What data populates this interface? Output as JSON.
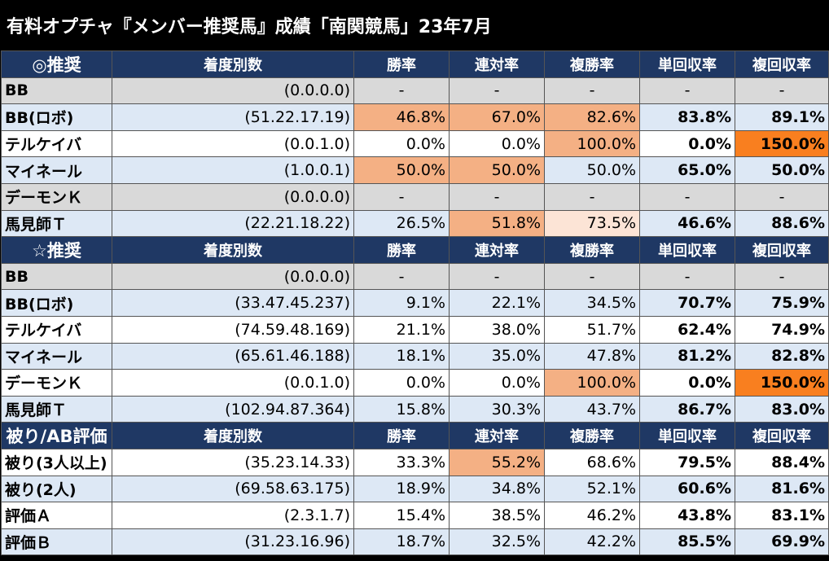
{
  "title": "有料オプチャ『メンバー推奨馬』成績「南関競馬」23年7月",
  "columns": [
    "着度別数",
    "勝率",
    "連対率",
    "複勝率",
    "単回収率",
    "複回収率"
  ],
  "sections": [
    {
      "label": "◎推奨",
      "rows": [
        {
          "name": "BB",
          "counts": "(0.0.0.0)",
          "win": "-",
          "quinella": "-",
          "show": "-",
          "win_return": "-",
          "show_return": "-"
        },
        {
          "name": "BB(ロボ)",
          "counts": "(51.22.17.19)",
          "win": "46.8%",
          "quinella": "67.0%",
          "show": "82.6%",
          "win_return": "83.8%",
          "show_return": "89.1%"
        },
        {
          "name": "テルケイバ",
          "counts": "(0.0.1.0)",
          "win": "0.0%",
          "quinella": "0.0%",
          "show": "100.0%",
          "win_return": "0.0%",
          "show_return": "150.0%"
        },
        {
          "name": "マイネール",
          "counts": "(1.0.0.1)",
          "win": "50.0%",
          "quinella": "50.0%",
          "show": "50.0%",
          "win_return": "65.0%",
          "show_return": "50.0%"
        },
        {
          "name": "デーモンＫ",
          "counts": "(0.0.0.0)",
          "win": "-",
          "quinella": "-",
          "show": "-",
          "win_return": "-",
          "show_return": "-"
        },
        {
          "name": "馬見師Ｔ",
          "counts": "(22.21.18.22)",
          "win": "26.5%",
          "quinella": "51.8%",
          "show": "73.5%",
          "win_return": "46.6%",
          "show_return": "88.6%"
        }
      ]
    },
    {
      "label": "☆推奨",
      "rows": [
        {
          "name": "BB",
          "counts": "(0.0.0.0)",
          "win": "-",
          "quinella": "-",
          "show": "-",
          "win_return": "-",
          "show_return": "-"
        },
        {
          "name": "BB(ロボ)",
          "counts": "(33.47.45.237)",
          "win": "9.1%",
          "quinella": "22.1%",
          "show": "34.5%",
          "win_return": "70.7%",
          "show_return": "75.9%"
        },
        {
          "name": "テルケイバ",
          "counts": "(74.59.48.169)",
          "win": "21.1%",
          "quinella": "38.0%",
          "show": "51.7%",
          "win_return": "62.4%",
          "show_return": "74.9%"
        },
        {
          "name": "マイネール",
          "counts": "(65.61.46.188)",
          "win": "18.1%",
          "quinella": "35.0%",
          "show": "47.8%",
          "win_return": "81.2%",
          "show_return": "82.8%"
        },
        {
          "name": "デーモンＫ",
          "counts": "(0.0.1.0)",
          "win": "0.0%",
          "quinella": "0.0%",
          "show": "100.0%",
          "win_return": "0.0%",
          "show_return": "150.0%"
        },
        {
          "name": "馬見師Ｔ",
          "counts": "(102.94.87.364)",
          "win": "15.8%",
          "quinella": "30.3%",
          "show": "43.7%",
          "win_return": "86.7%",
          "show_return": "83.0%"
        }
      ]
    },
    {
      "label": "被り/AB評価",
      "rows": [
        {
          "name": "被り(3人以上)",
          "counts": "(35.23.14.33)",
          "win": "33.3%",
          "quinella": "55.2%",
          "show": "68.6%",
          "win_return": "79.5%",
          "show_return": "88.4%"
        },
        {
          "name": "被り(2人)",
          "counts": "(69.58.63.175)",
          "win": "18.9%",
          "quinella": "34.8%",
          "show": "52.1%",
          "win_return": "60.6%",
          "show_return": "81.6%"
        },
        {
          "name": "評価Ａ",
          "counts": "(2.3.1.7)",
          "win": "15.4%",
          "quinella": "38.5%",
          "show": "46.2%",
          "win_return": "43.8%",
          "show_return": "83.1%"
        },
        {
          "name": "評価Ｂ",
          "counts": "(31.23.16.96)",
          "win": "18.7%",
          "quinella": "32.5%",
          "show": "42.2%",
          "win_return": "85.5%",
          "show_return": "69.9%"
        }
      ]
    }
  ],
  "colors": {
    "header_bg": "#1f3864",
    "gray_row": "#d9d9d9",
    "blue_row": "#dde8f5",
    "highlight_orange": "#f4b084",
    "highlight_light": "#fce4d6",
    "highlight_strong": "#f97f1f"
  }
}
